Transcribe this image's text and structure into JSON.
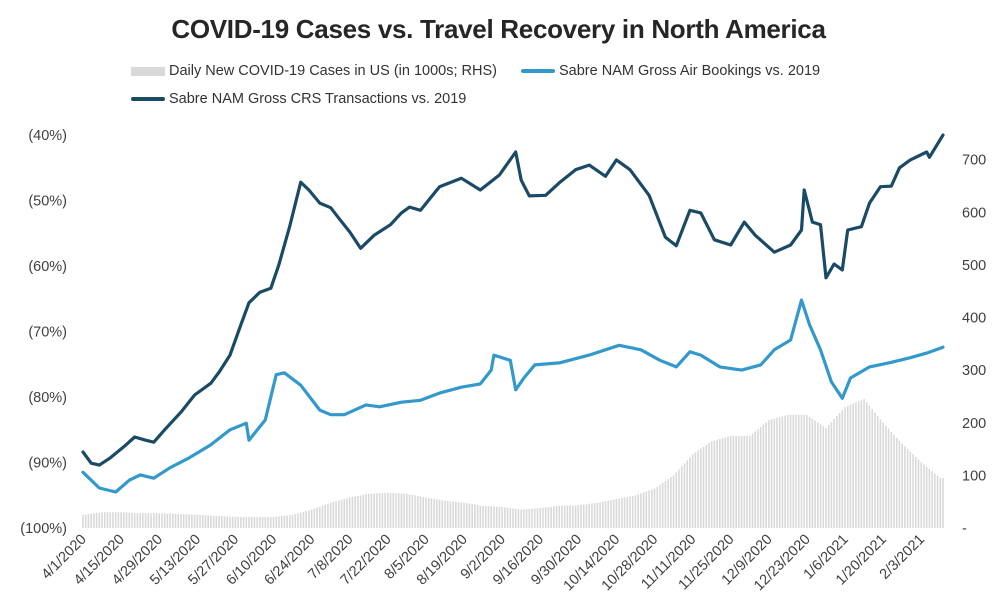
{
  "chart_data": {
    "type": "line",
    "title": "COVID-19 Cases vs. Travel Recovery in North America",
    "legend": [
      {
        "name": "Daily New COVID-19 Cases in US (in 1000s; RHS)",
        "kind": "bar",
        "color": "#d9d9d9"
      },
      {
        "name": "Sabre NAM Gross Air Bookings vs. 2019",
        "kind": "line",
        "color": "#3399cc"
      },
      {
        "name": "Sabre NAM Gross CRS Transactions vs. 2019",
        "kind": "line",
        "color": "#1a4a66"
      }
    ],
    "legend_placement": "top",
    "x_start_date": "4/1/2020",
    "x_unit": "days since 4/1/2020",
    "xlim": [
      0,
      316
    ],
    "x_tick_labels": [
      "4/1/2020",
      "4/15/2020",
      "4/29/2020",
      "5/13/2020",
      "5/27/2020",
      "6/10/2020",
      "6/24/2020",
      "7/8/2020",
      "7/22/2020",
      "8/5/2020",
      "8/19/2020",
      "9/2/2020",
      "9/16/2020",
      "9/30/2020",
      "10/14/2020",
      "10/28/2020",
      "11/11/2020",
      "11/25/2020",
      "12/9/2020",
      "12/23/2020",
      "1/6/2021",
      "1/20/2021",
      "2/3/2021"
    ],
    "x_tick_days": [
      0,
      14,
      28,
      42,
      56,
      70,
      84,
      98,
      112,
      126,
      140,
      154,
      168,
      182,
      196,
      210,
      224,
      238,
      252,
      266,
      280,
      294,
      308
    ],
    "y_left": {
      "lim": [
        -100,
        -40
      ],
      "ticks": [
        -40,
        -50,
        -60,
        -70,
        -80,
        -90,
        -100
      ],
      "tick_labels": [
        "(40%)",
        "(50%)",
        "(60%)",
        "(70%)",
        "(80%)",
        "(90%)",
        "(100%)"
      ]
    },
    "y_right": {
      "lim": [
        0,
        747
      ],
      "ticks": [
        700,
        600,
        500,
        400,
        300,
        200,
        100,
        0
      ],
      "tick_labels": [
        "700",
        "600",
        "500",
        "400",
        "300",
        "200",
        "100",
        "-"
      ]
    },
    "series": [
      {
        "name": "Sabre NAM Gross CRS Transactions vs. 2019",
        "axis": "left",
        "color": "#1a4a66",
        "x": [
          0,
          3,
          6,
          10,
          15,
          19,
          23,
          26,
          30,
          36,
          41,
          47,
          50,
          54,
          58,
          61,
          65,
          69,
          72,
          76,
          80,
          83,
          87,
          91,
          94,
          98,
          102,
          107,
          113,
          117,
          120,
          124,
          131,
          139,
          146,
          153,
          159,
          161,
          164,
          170,
          175,
          181,
          186,
          192,
          196,
          201,
          208,
          214,
          218,
          223,
          227,
          232,
          238,
          243,
          247,
          254,
          260,
          264,
          265,
          268,
          271,
          273,
          276,
          279,
          281,
          286,
          289,
          293,
          297,
          300,
          304,
          310,
          311,
          316
        ],
        "y": [
          -88.4,
          -90.1,
          -90.4,
          -89.3,
          -87.6,
          -86.1,
          -86.6,
          -86.9,
          -85,
          -82.3,
          -79.7,
          -77.9,
          -76.2,
          -73.6,
          -69,
          -65.6,
          -64,
          -63.4,
          -59.8,
          -53.9,
          -47.2,
          -48.4,
          -50.4,
          -51.1,
          -52.7,
          -54.8,
          -57.3,
          -55.3,
          -53.7,
          -51.9,
          -51,
          -51.5,
          -47.9,
          -46.6,
          -48.4,
          -46.1,
          -42.6,
          -46.9,
          -49.3,
          -49.2,
          -47.3,
          -45.3,
          -44.6,
          -46.3,
          -43.8,
          -45.3,
          -49.2,
          -55.6,
          -56.9,
          -51.5,
          -51.9,
          -56,
          -56.8,
          -53.3,
          -55.3,
          -57.9,
          -56.8,
          -54.5,
          -48.4,
          -53.3,
          -53.7,
          -61.8,
          -59.7,
          -60.6,
          -54.5,
          -54,
          -50.4,
          -47.9,
          -47.8,
          -45,
          -43.8,
          -42.6,
          -43.4,
          -40
        ]
      },
      {
        "name": "Sabre NAM Gross Air Bookings vs. 2019",
        "axis": "left",
        "color": "#3399cc",
        "x": [
          0,
          6,
          12,
          17,
          21,
          26,
          32,
          39,
          47,
          54,
          60,
          61,
          67,
          71,
          74,
          80,
          87,
          91,
          96,
          104,
          109,
          117,
          124,
          131,
          139,
          146,
          150,
          151,
          157,
          159,
          162,
          166,
          175,
          186,
          197,
          205,
          212,
          218,
          223,
          227,
          234,
          242,
          249,
          254,
          260,
          264,
          267,
          271,
          275,
          279,
          282,
          289,
          297,
          304,
          310,
          316
        ],
        "y": [
          -91.5,
          -93.9,
          -94.5,
          -92.7,
          -91.9,
          -92.4,
          -90.8,
          -89.3,
          -87.3,
          -85,
          -84,
          -86.6,
          -83.5,
          -76.6,
          -76.3,
          -78.2,
          -82,
          -82.7,
          -82.7,
          -81.2,
          -81.5,
          -80.8,
          -80.5,
          -79.4,
          -78.5,
          -78,
          -75.9,
          -73.6,
          -74.4,
          -78.9,
          -77.1,
          -75.1,
          -74.8,
          -73.6,
          -72.1,
          -72.8,
          -74.4,
          -75.4,
          -73.1,
          -73.6,
          -75.4,
          -75.9,
          -75.1,
          -72.8,
          -71.3,
          -65.2,
          -69,
          -72.8,
          -77.7,
          -80.2,
          -77.1,
          -75.4,
          -74.7,
          -74,
          -73.3,
          -72.4
        ]
      },
      {
        "name": "Daily New COVID-19 Cases in US (in 1000s; RHS)",
        "axis": "right",
        "color": "#d9d9d9",
        "kind": "bar",
        "weekly_x": [
          0,
          7,
          14,
          21,
          28,
          35,
          42,
          49,
          56,
          63,
          70,
          77,
          84,
          91,
          98,
          105,
          112,
          119,
          126,
          133,
          140,
          147,
          154,
          161,
          168,
          175,
          182,
          189,
          196,
          203,
          210,
          217,
          224,
          231,
          238,
          245,
          252,
          259,
          266,
          273,
          280,
          287,
          294,
          301,
          308,
          315
        ],
        "weekly_values": [
          25,
          30,
          30,
          28,
          28,
          27,
          25,
          23,
          21,
          21,
          21,
          25,
          35,
          48,
          58,
          65,
          67,
          65,
          58,
          52,
          48,
          42,
          40,
          35,
          38,
          42,
          43,
          48,
          55,
          62,
          75,
          100,
          140,
          165,
          175,
          175,
          205,
          215,
          215,
          190,
          230,
          245,
          200,
          160,
          125,
          95
        ]
      }
    ]
  }
}
